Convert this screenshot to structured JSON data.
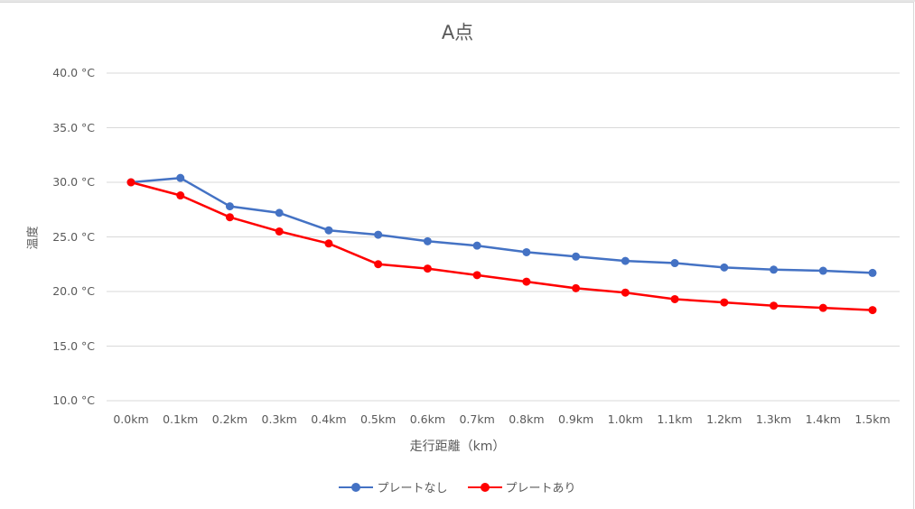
{
  "chart_data": {
    "type": "line",
    "title": "A点",
    "xlabel": "走行距離（km）",
    "ylabel": "温度",
    "categories": [
      "0.0km",
      "0.1km",
      "0.2km",
      "0.3km",
      "0.4km",
      "0.5km",
      "0.6km",
      "0.7km",
      "0.8km",
      "0.9km",
      "1.0km",
      "1.1km",
      "1.2km",
      "1.3km",
      "1.4km",
      "1.5km"
    ],
    "series": [
      {
        "name": "プレートなし",
        "color": "#4472C4",
        "values": [
          30.0,
          30.4,
          27.8,
          27.2,
          25.6,
          25.2,
          24.6,
          24.2,
          23.6,
          23.2,
          22.8,
          22.6,
          22.2,
          22.0,
          21.9,
          21.7
        ]
      },
      {
        "name": "プレートあり",
        "color": "#FF0000",
        "values": [
          30.0,
          28.8,
          26.8,
          25.5,
          24.4,
          22.5,
          22.1,
          21.5,
          20.9,
          20.3,
          19.9,
          19.3,
          19.0,
          18.7,
          18.5,
          18.3
        ]
      }
    ],
    "ylim": [
      10,
      40
    ],
    "yticks": [
      10,
      15,
      20,
      25,
      30,
      35,
      40
    ],
    "ytick_labels": [
      "10.0 °C",
      "15.0 °C",
      "20.0 °C",
      "25.0 °C",
      "30.0 °C",
      "35.0 °C",
      "40.0 °C"
    ],
    "grid": "horizontal",
    "legend_position": "bottom",
    "gridline_color": "#D9D9D9"
  }
}
